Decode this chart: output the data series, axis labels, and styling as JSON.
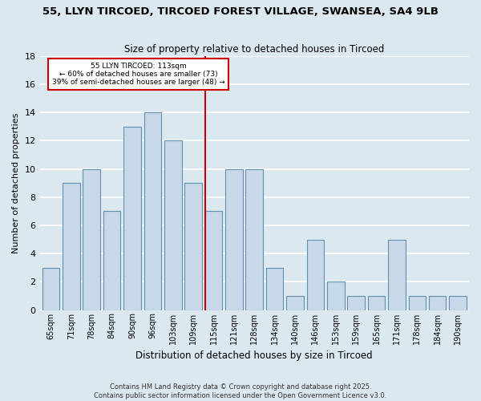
{
  "title": "55, LLYN TIRCOED, TIRCOED FOREST VILLAGE, SWANSEA, SA4 9LB",
  "subtitle": "Size of property relative to detached houses in Tircoed",
  "xlabel": "Distribution of detached houses by size in Tircoed",
  "ylabel": "Number of detached properties",
  "categories": [
    "65sqm",
    "71sqm",
    "78sqm",
    "84sqm",
    "90sqm",
    "96sqm",
    "103sqm",
    "109sqm",
    "115sqm",
    "121sqm",
    "128sqm",
    "134sqm",
    "140sqm",
    "146sqm",
    "153sqm",
    "159sqm",
    "165sqm",
    "171sqm",
    "178sqm",
    "184sqm",
    "190sqm"
  ],
  "values": [
    3,
    9,
    10,
    7,
    13,
    14,
    12,
    9,
    7,
    10,
    10,
    3,
    1,
    5,
    2,
    1,
    1,
    5,
    1,
    1,
    1
  ],
  "bar_color": "#c8d8e8",
  "bar_edge_color": "#6090b0",
  "highlight_line_label": "55 LLYN TIRCOED: 113sqm",
  "annotation_line1": "← 60% of detached houses are smaller (73)",
  "annotation_line2": "39% of semi-detached houses are larger (48) →",
  "vline_color": "#cc0000",
  "ylim": [
    0,
    18
  ],
  "yticks": [
    0,
    2,
    4,
    6,
    8,
    10,
    12,
    14,
    16,
    18
  ],
  "background_color": "#dce8f0",
  "grid_color": "#ffffff",
  "footnote1": "Contains HM Land Registry data © Crown copyright and database right 2025.",
  "footnote2": "Contains public sector information licensed under the Open Government Licence v3.0."
}
